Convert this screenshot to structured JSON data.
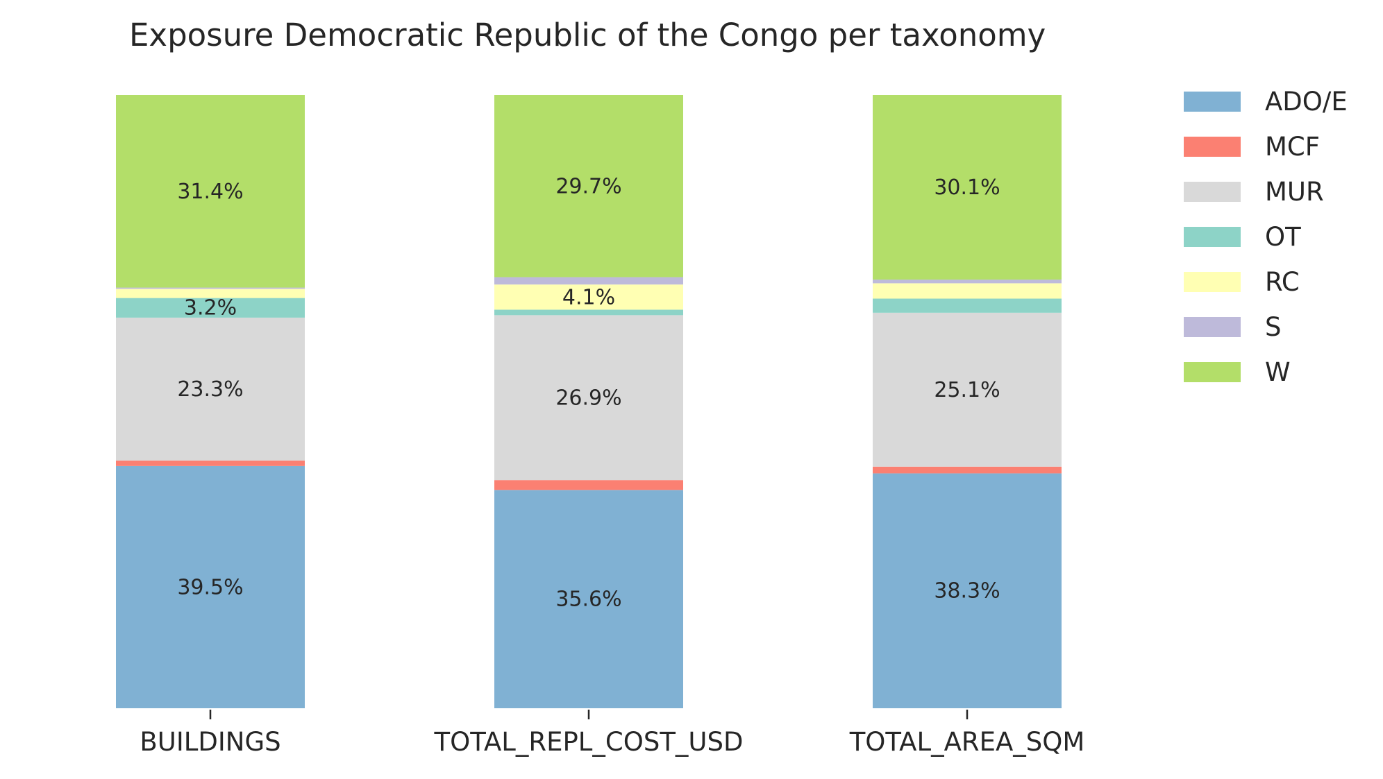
{
  "chart_data": {
    "type": "bar",
    "stacked": true,
    "normalized": true,
    "title": "Exposure Democratic Republic of the Congo per taxonomy",
    "xlabel": "",
    "ylabel": "",
    "ylim": [
      0,
      100
    ],
    "grid": false,
    "legend_placement": "right",
    "categories": [
      "BUILDINGS",
      "TOTAL_REPL_COST_USD",
      "TOTAL_AREA_SQM"
    ],
    "series": [
      {
        "name": "ADO/E",
        "color": "#80b1d3",
        "values": [
          39.5,
          35.6,
          38.3
        ]
      },
      {
        "name": "MCF",
        "color": "#fb8072",
        "values": [
          0.9,
          1.6,
          1.1
        ]
      },
      {
        "name": "MUR",
        "color": "#d9d9d9",
        "values": [
          23.3,
          26.9,
          25.1
        ]
      },
      {
        "name": "OT",
        "color": "#8dd3c7",
        "values": [
          3.2,
          0.9,
          2.3
        ]
      },
      {
        "name": "RC",
        "color": "#ffffb3",
        "values": [
          1.5,
          4.1,
          2.5
        ]
      },
      {
        "name": "S",
        "color": "#bebada",
        "values": [
          0.2,
          1.2,
          0.6
        ]
      },
      {
        "name": "W",
        "color": "#b3de69",
        "values": [
          31.4,
          29.7,
          30.1
        ]
      }
    ],
    "data_labels": [
      {
        "series": "ADO/E",
        "category": "BUILDINGS",
        "text": "39.5%"
      },
      {
        "series": "ADO/E",
        "category": "TOTAL_REPL_COST_USD",
        "text": "35.6%"
      },
      {
        "series": "ADO/E",
        "category": "TOTAL_AREA_SQM",
        "text": "38.3%"
      },
      {
        "series": "MUR",
        "category": "BUILDINGS",
        "text": "23.3%"
      },
      {
        "series": "MUR",
        "category": "TOTAL_REPL_COST_USD",
        "text": "26.9%"
      },
      {
        "series": "MUR",
        "category": "TOTAL_AREA_SQM",
        "text": "25.1%"
      },
      {
        "series": "OT",
        "category": "BUILDINGS",
        "text": "3.2%"
      },
      {
        "series": "RC",
        "category": "TOTAL_REPL_COST_USD",
        "text": "4.1%"
      },
      {
        "series": "W",
        "category": "BUILDINGS",
        "text": "31.4%"
      },
      {
        "series": "W",
        "category": "TOTAL_REPL_COST_USD",
        "text": "29.7%"
      },
      {
        "series": "W",
        "category": "TOTAL_AREA_SQM",
        "text": "30.1%"
      }
    ]
  }
}
